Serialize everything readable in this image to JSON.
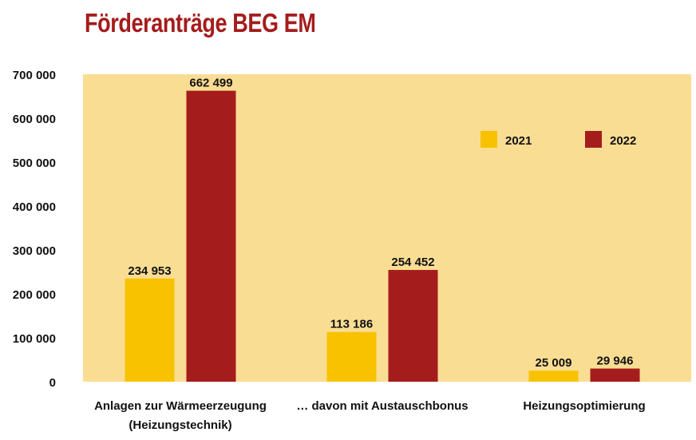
{
  "chart_data": {
    "type": "bar",
    "title": "Förderanträge BEG EM",
    "categories": [
      [
        "Anlagen zur Wärmeerzeugung",
        "(Heizungstechnik)"
      ],
      [
        "… davon mit Austauschbonus"
      ],
      [
        "Heizungsoptimierung"
      ]
    ],
    "series": [
      {
        "name": "2021",
        "color": "#f8c200",
        "values": [
          234953,
          113186,
          25009
        ],
        "labels": [
          "234 953",
          "113 186",
          "25 009"
        ]
      },
      {
        "name": "2022",
        "color": "#a51c1c",
        "values": [
          662499,
          254452,
          29946
        ],
        "labels": [
          "662 499",
          "254 452",
          "29 946"
        ]
      }
    ],
    "ylim": [
      0,
      700000
    ],
    "yticks": [
      0,
      100000,
      200000,
      300000,
      400000,
      500000,
      600000,
      700000
    ],
    "ytick_labels": [
      "0",
      "100 000",
      "200 000",
      "300 000",
      "400 000",
      "500 000",
      "600 000",
      "700 000"
    ],
    "xlabel": "",
    "ylabel": "",
    "grid": false,
    "legend_position": "top-right",
    "plot_background": "#f9dd93"
  }
}
